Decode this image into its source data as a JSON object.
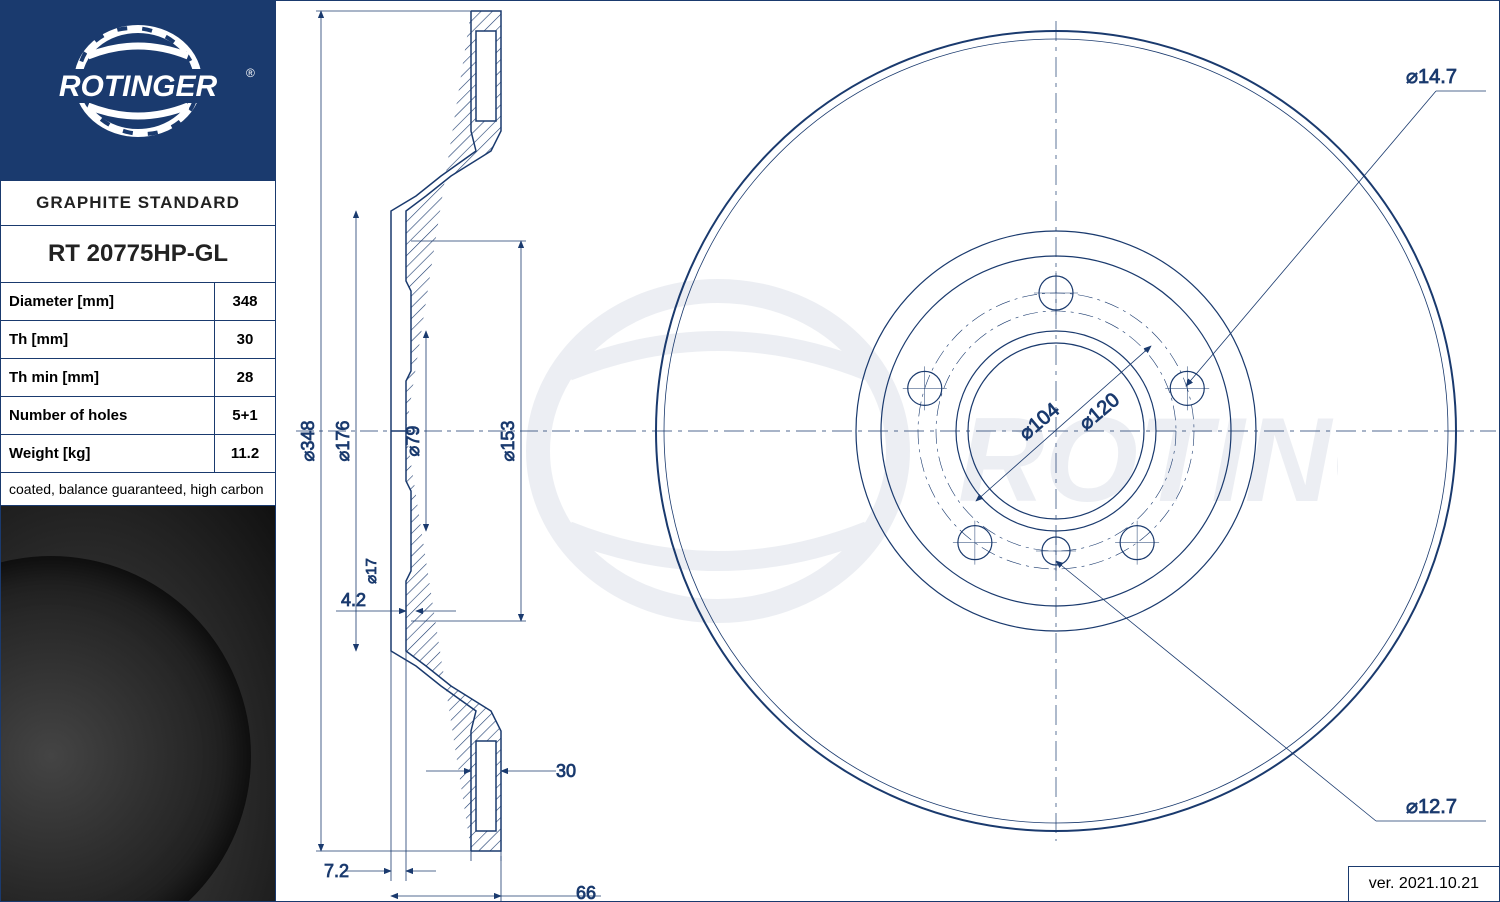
{
  "brand": "ROTINGER",
  "standard": "GRAPHITE STANDARD",
  "part_number": "RT 20775HP-GL",
  "specs": [
    {
      "label": "Diameter [mm]",
      "value": "348"
    },
    {
      "label": "Th [mm]",
      "value": "30"
    },
    {
      "label": "Th min [mm]",
      "value": "28"
    },
    {
      "label": "Number of holes",
      "value": "5+1"
    },
    {
      "label": "Weight [kg]",
      "value": "11.2"
    }
  ],
  "notes": "coated, balance guaranteed, high carbon",
  "version": "ver. 2021.10.21",
  "colors": {
    "brand_blue": "#1a3a6e",
    "line": "#1a3a6e",
    "hatch": "#1a3a6e",
    "watermark": "#1a3a6e"
  },
  "section_view": {
    "dims": {
      "d348": "⌀348",
      "d176": "⌀176",
      "d79": "⌀79",
      "d153": "⌀153",
      "d17": "⌀17",
      "t4_2": "4.2",
      "t30": "30",
      "t7_2": "7.2",
      "t66": "66"
    }
  },
  "front_view": {
    "dims": {
      "d14_7": "⌀14.7",
      "d12_7": "⌀12.7",
      "d104": "⌀104",
      "d120": "⌀120"
    },
    "outer_diameter": 348,
    "hole_count": 5,
    "bolt_circle": 120,
    "small_hole_d": 14.7,
    "center_small_hole_d": 12.7
  }
}
